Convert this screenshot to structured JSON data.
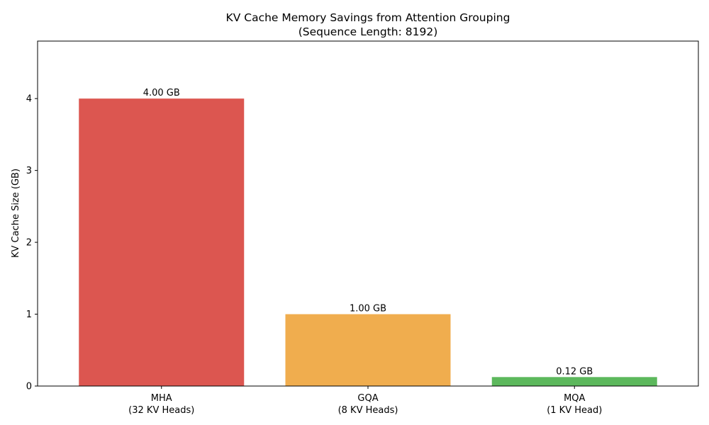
{
  "chart_data": {
    "type": "bar",
    "title": "KV Cache Memory Savings from Attention Grouping",
    "subtitle": "(Sequence Length: 8192)",
    "xlabel": "",
    "ylabel": "KV Cache Size (GB)",
    "ylim": [
      0,
      4.8
    ],
    "yticks": [
      0,
      1,
      2,
      3,
      4
    ],
    "grid": false,
    "categories": [
      {
        "name": "MHA",
        "detail": "(32 KV Heads)"
      },
      {
        "name": "GQA",
        "detail": "(8 KV Heads)"
      },
      {
        "name": "MQA",
        "detail": "(1 KV Head)"
      }
    ],
    "values": [
      4.0,
      1.0,
      0.125
    ],
    "value_labels": [
      "4.00 GB",
      "1.00 GB",
      "0.12 GB"
    ],
    "colors": [
      "#dc5650",
      "#f0ad4e",
      "#5cb85c"
    ]
  }
}
